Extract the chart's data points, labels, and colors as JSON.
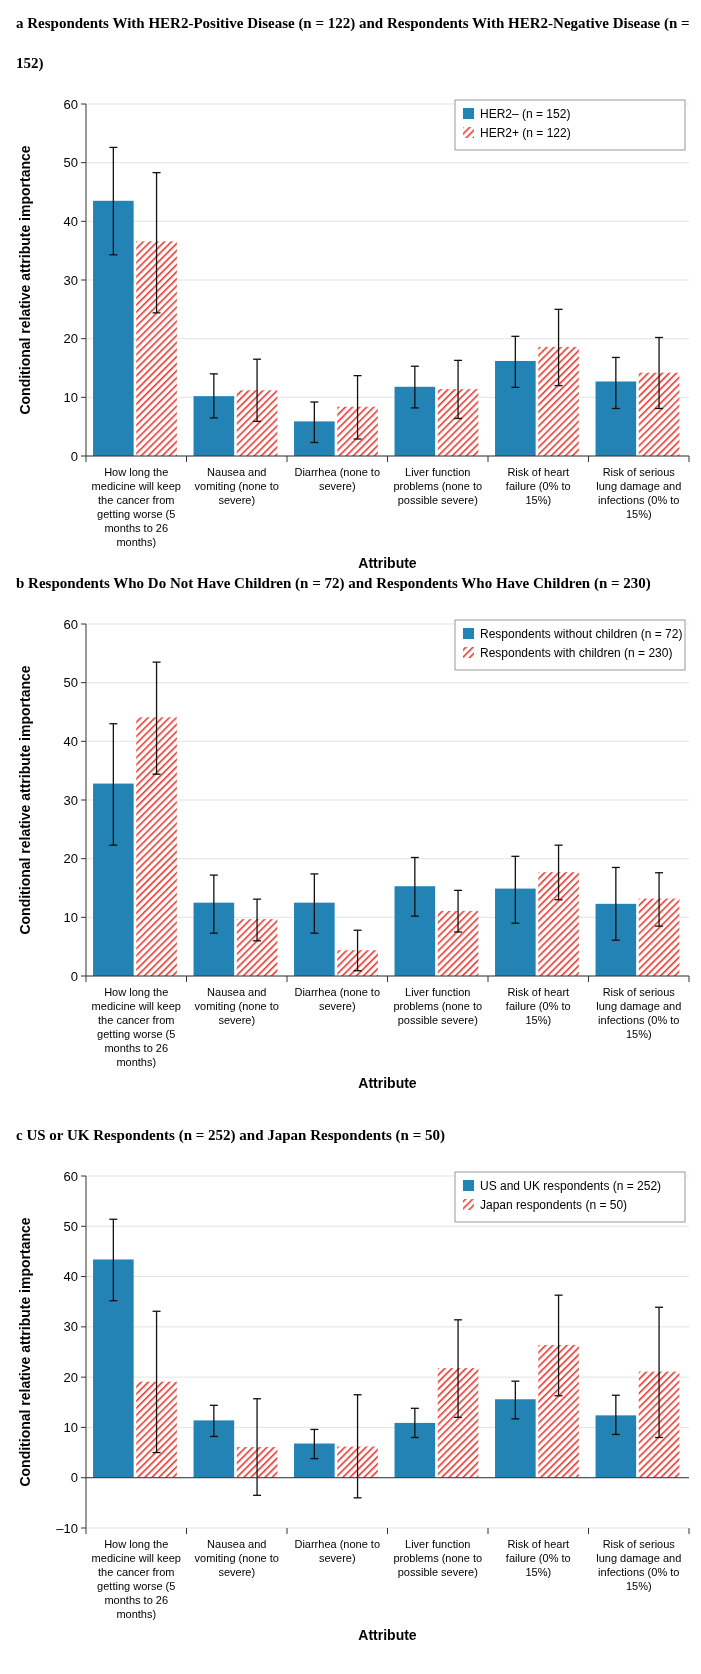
{
  "chart_data": [
    {
      "type": "bar",
      "title": "a Respondents With HER2-Positive Disease (n = 122) and Respondents With HER2-Negative Disease (n = 152)",
      "xlabel": "Attribute",
      "ylabel": "Conditional relative attribute importance",
      "categories": [
        "How long the medicine will keep the cancer from getting worse (5 months to 26 months)",
        "Nausea and vomiting (none to severe)",
        "Diarrhea (none to severe)",
        "Liver function problems (none to possible severe)",
        "Risk of heart failure (0% to 15%)",
        "Risk of serious lung damage and infections (0% to 15%)"
      ],
      "ylim": [
        0,
        60
      ],
      "yticks": [
        0,
        10,
        20,
        30,
        40,
        50,
        60
      ],
      "grid": "y",
      "legend": "top right",
      "series": [
        {
          "name": "HER2– (n = 152)",
          "color": "#2383b4",
          "values": [
            43.5,
            10.2,
            5.9,
            11.8,
            16.2,
            12.7
          ],
          "errors": [
            [
              34.3,
              52.6
            ],
            [
              6.5,
              14.0
            ],
            [
              2.3,
              9.2
            ],
            [
              8.2,
              15.3
            ],
            [
              11.7,
              20.4
            ],
            [
              8.1,
              16.8
            ]
          ]
        },
        {
          "name": "HER2+ (n = 122)",
          "color": "#e8372f",
          "values": [
            36.6,
            11.2,
            8.4,
            11.4,
            18.6,
            14.2
          ],
          "errors": [
            [
              24.4,
              48.3
            ],
            [
              5.9,
              16.5
            ],
            [
              2.9,
              13.7
            ],
            [
              6.4,
              16.3
            ],
            [
              12.0,
              25.0
            ],
            [
              8.1,
              20.2
            ]
          ]
        }
      ]
    },
    {
      "type": "bar",
      "title": "b Respondents Who Do Not Have Children (n = 72) and Respondents Who Have Children (n = 230)",
      "xlabel": "Attribute",
      "ylabel": "Conditional relative attribute importance",
      "categories": [
        "How long the medicine will keep the cancer from getting worse (5 months to 26 months)",
        "Nausea and vomiting (none to severe)",
        "Diarrhea (none to severe)",
        "Liver function problems (none to possible severe)",
        "Risk of heart failure (0% to 15%)",
        "Risk of serious lung damage and infections (0% to 15%)"
      ],
      "ylim": [
        0,
        60
      ],
      "yticks": [
        0,
        10,
        20,
        30,
        40,
        50,
        60
      ],
      "grid": "y",
      "legend": "top right",
      "series": [
        {
          "name": "Respondents without children (n = 72)",
          "color": "#2383b4",
          "values": [
            32.8,
            12.5,
            12.5,
            15.3,
            14.9,
            12.3
          ],
          "errors": [
            [
              22.3,
              43.0
            ],
            [
              7.3,
              17.2
            ],
            [
              7.3,
              17.4
            ],
            [
              10.2,
              20.2
            ],
            [
              9.0,
              20.4
            ],
            [
              6.1,
              18.5
            ]
          ]
        },
        {
          "name": "Respondents with children (n = 230)",
          "color": "#e8372f",
          "values": [
            44.1,
            9.7,
            4.4,
            11.1,
            17.7,
            13.2
          ],
          "errors": [
            [
              34.4,
              53.5
            ],
            [
              6.0,
              13.1
            ],
            [
              0.9,
              7.8
            ],
            [
              7.5,
              14.6
            ],
            [
              13.0,
              22.3
            ],
            [
              8.5,
              17.6
            ]
          ]
        }
      ]
    },
    {
      "type": "bar",
      "title": "c US or UK Respondents (n = 252) and Japan Respondents (n = 50)",
      "xlabel": "Attribute",
      "ylabel": "Conditional relative attribute importance",
      "categories": [
        "How long the medicine will keep the cancer from getting worse (5 months to 26 months)",
        "Nausea and vomiting (none to severe)",
        "Diarrhea (none to severe)",
        "Liver function problems (none to possible severe)",
        "Risk of heart failure (0% to 15%)",
        "Risk of serious lung damage and infections (0% to 15%)"
      ],
      "ylim": [
        -10,
        60
      ],
      "yticks": [
        {
          "value": -10,
          "label": "–10"
        },
        0,
        10,
        20,
        30,
        40,
        50,
        60
      ],
      "grid": "y",
      "legend": "top right",
      "series": [
        {
          "name": "US and UK respondents  (n = 252)",
          "color": "#2383b4",
          "values": [
            43.4,
            11.4,
            6.8,
            10.9,
            15.6,
            12.4
          ],
          "errors": [
            [
              35.2,
              51.4
            ],
            [
              8.2,
              14.4
            ],
            [
              3.8,
              9.6
            ],
            [
              8.0,
              13.8
            ],
            [
              11.7,
              19.2
            ],
            [
              8.6,
              16.4
            ]
          ]
        },
        {
          "name": "Japan respondents (n = 50)",
          "color": "#e8372f",
          "values": [
            19.1,
            6.1,
            6.2,
            21.8,
            26.4,
            21.1
          ],
          "errors": [
            [
              5.0,
              33.1
            ],
            [
              -3.5,
              15.7
            ],
            [
              -4.0,
              16.5
            ],
            [
              12.0,
              31.4
            ],
            [
              16.3,
              36.3
            ],
            [
              8.0,
              33.9
            ]
          ]
        }
      ]
    }
  ]
}
